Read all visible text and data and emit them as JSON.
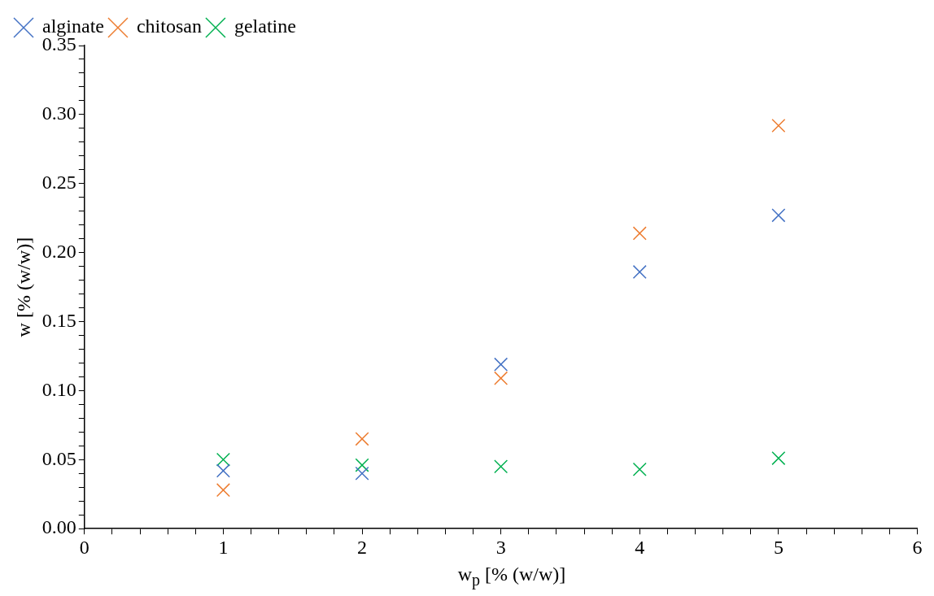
{
  "chart_data": {
    "type": "scatter",
    "xlabel": "w$_{p}$ [% (w/w)]",
    "ylabel": "w [% (w/w)]",
    "marker": "cross",
    "legend": "top left",
    "grid": false,
    "xlim": [
      0,
      6
    ],
    "ylim": [
      0,
      0.35
    ],
    "xticks": [
      0,
      {
        "value": 0.2,
        "label": null
      },
      {
        "value": 0.4,
        "label": null
      },
      {
        "value": 0.6,
        "label": null
      },
      {
        "value": 0.8,
        "label": null
      },
      1,
      {
        "value": 1.2,
        "label": null
      },
      {
        "value": 1.4,
        "label": null
      },
      {
        "value": 1.6,
        "label": null
      },
      {
        "value": 1.8,
        "label": null
      },
      2,
      {
        "value": 2.2,
        "label": null
      },
      {
        "value": 2.4,
        "label": null
      },
      {
        "value": 2.6,
        "label": null
      },
      {
        "value": 2.8,
        "label": null
      },
      3,
      {
        "value": 3.2,
        "label": null
      },
      {
        "value": 3.4,
        "label": null
      },
      {
        "value": 3.6,
        "label": null
      },
      {
        "value": 3.8,
        "label": null
      },
      4,
      {
        "value": 4.2,
        "label": null
      },
      {
        "value": 4.4,
        "label": null
      },
      {
        "value": 4.6,
        "label": null
      },
      {
        "value": 4.8,
        "label": null
      },
      5,
      {
        "value": 5.2,
        "label": null
      },
      {
        "value": 5.4,
        "label": null
      },
      {
        "value": 5.6,
        "label": null
      },
      {
        "value": 5.8,
        "label": null
      },
      6
    ],
    "yticks": [
      {
        "value": 0,
        "label": "0.00"
      },
      {
        "value": 0.01,
        "label": null
      },
      {
        "value": 0.02,
        "label": null
      },
      {
        "value": 0.03,
        "label": null
      },
      {
        "value": 0.04,
        "label": null
      },
      {
        "value": 0.05,
        "label": "0.05"
      },
      {
        "value": 0.06,
        "label": null
      },
      {
        "value": 0.07,
        "label": null
      },
      {
        "value": 0.08,
        "label": null
      },
      {
        "value": 0.09,
        "label": null
      },
      {
        "value": 0.1,
        "label": "0.10"
      },
      {
        "value": 0.11,
        "label": null
      },
      {
        "value": 0.12,
        "label": null
      },
      {
        "value": 0.13,
        "label": null
      },
      {
        "value": 0.14,
        "label": null
      },
      {
        "value": 0.15,
        "label": "0.15"
      },
      {
        "value": 0.16,
        "label": null
      },
      {
        "value": 0.17,
        "label": null
      },
      {
        "value": 0.18,
        "label": null
      },
      {
        "value": 0.19,
        "label": null
      },
      {
        "value": 0.2,
        "label": "0.20"
      },
      {
        "value": 0.21,
        "label": null
      },
      {
        "value": 0.22,
        "label": null
      },
      {
        "value": 0.23,
        "label": null
      },
      {
        "value": 0.24,
        "label": null
      },
      {
        "value": 0.25,
        "label": "0.25"
      },
      {
        "value": 0.26,
        "label": null
      },
      {
        "value": 0.27,
        "label": null
      },
      {
        "value": 0.28,
        "label": null
      },
      {
        "value": 0.29,
        "label": null
      },
      {
        "value": 0.3,
        "label": "0.30"
      },
      {
        "value": 0.31,
        "label": null
      },
      {
        "value": 0.32,
        "label": null
      },
      {
        "value": 0.33,
        "label": null
      },
      {
        "value": 0.34,
        "label": null
      },
      {
        "value": 0.35,
        "label": "0.35"
      }
    ],
    "x": [
      1,
      2,
      3,
      4,
      5
    ],
    "series": [
      {
        "name": "alginate",
        "color": "#4472c4",
        "values": [
          0.042,
          0.04,
          0.119,
          0.186,
          0.227
        ]
      },
      {
        "name": "chitosan",
        "color": "#ed7d31",
        "values": [
          0.028,
          0.065,
          0.109,
          0.214,
          0.292
        ]
      },
      {
        "name": "gelatine",
        "color": "#00b050",
        "values": [
          0.05,
          0.046,
          0.045,
          0.043,
          0.051
        ]
      }
    ]
  }
}
